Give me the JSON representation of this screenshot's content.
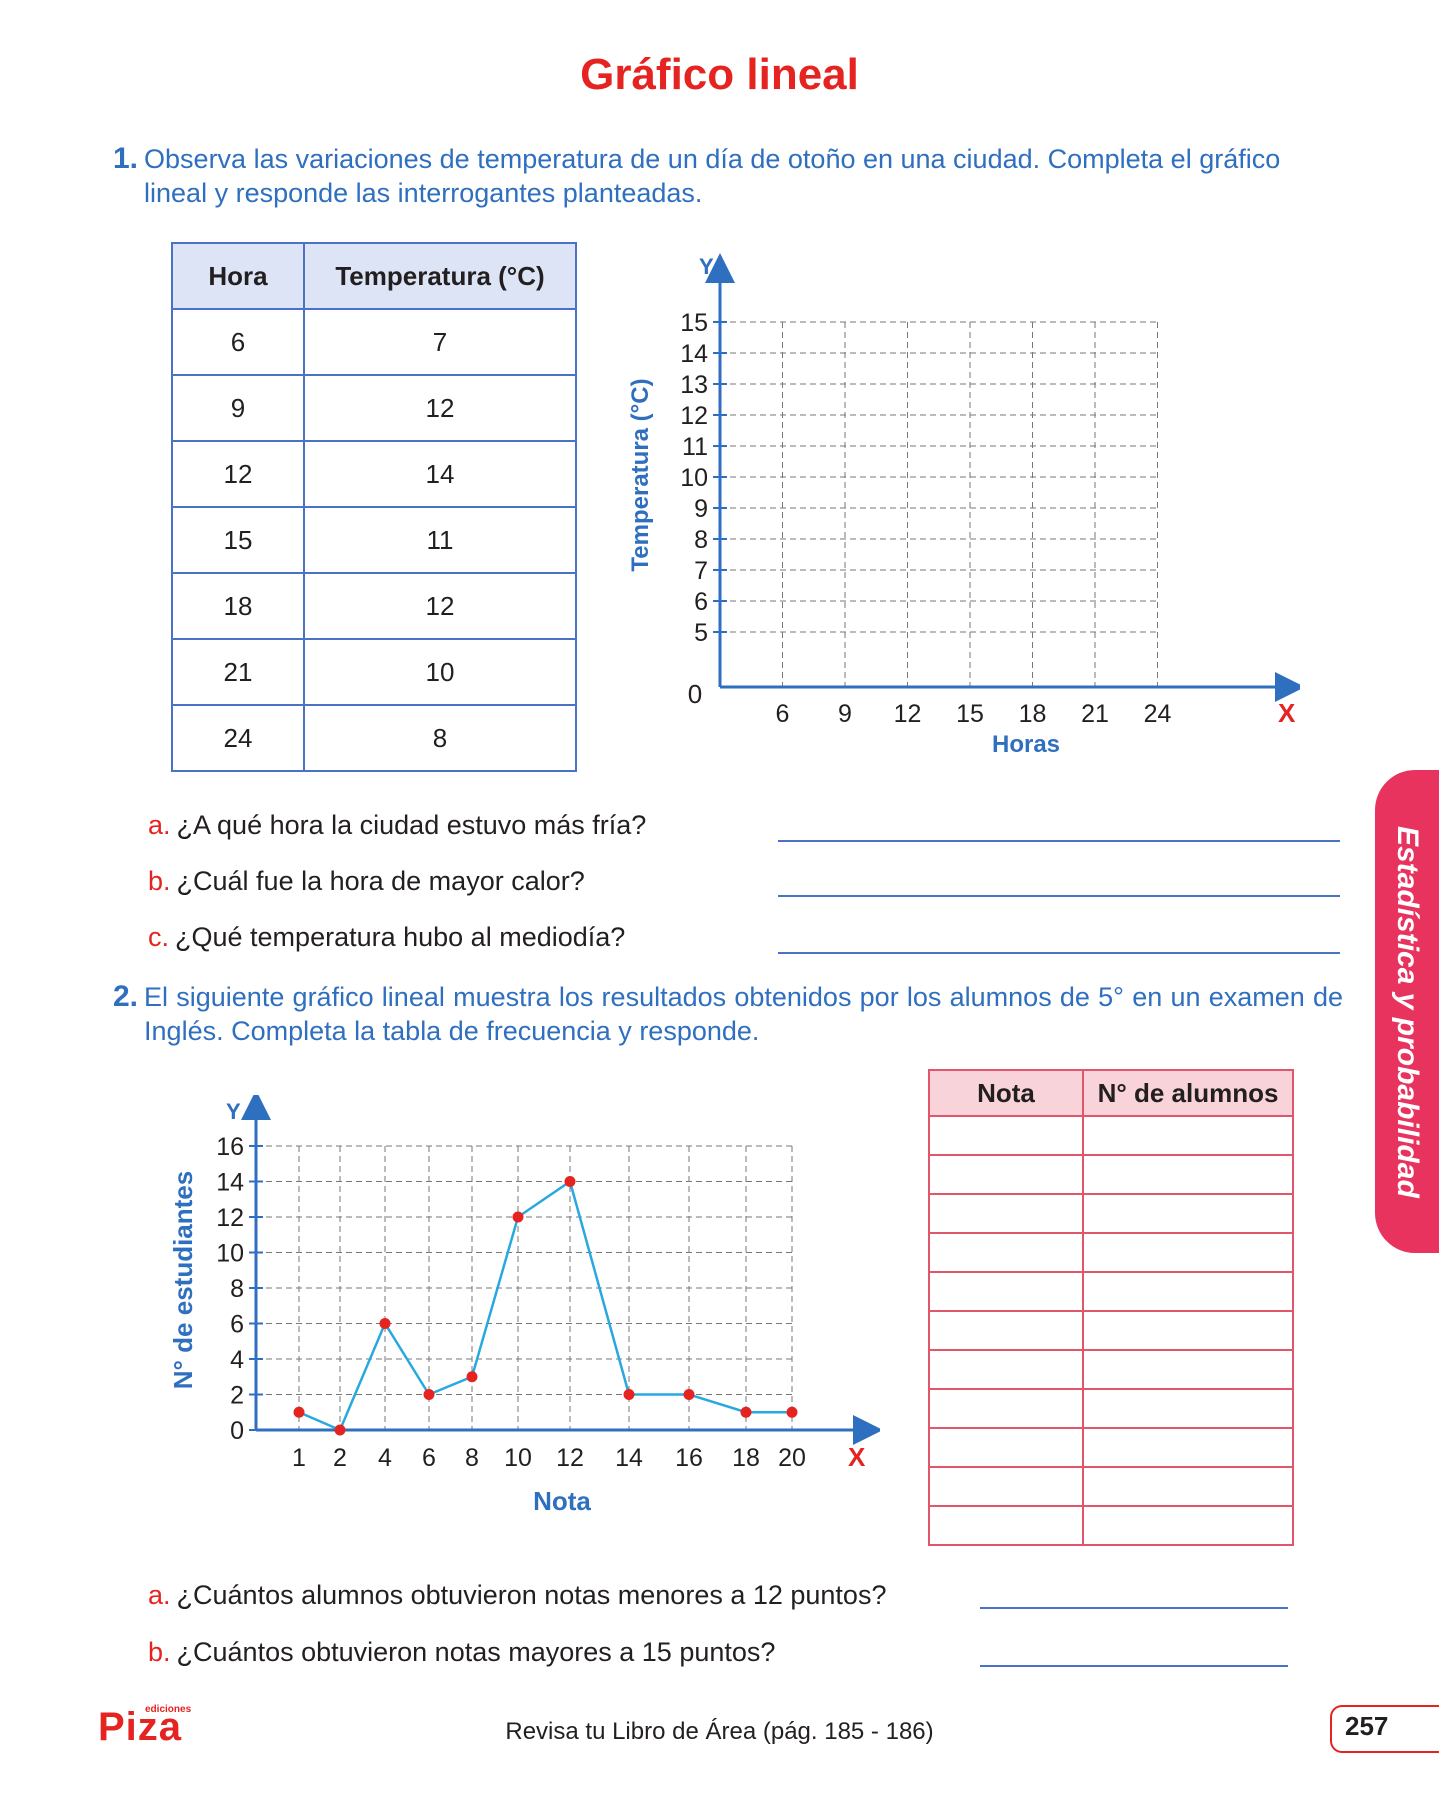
{
  "title": "Gráfico lineal",
  "q1": {
    "number": "1.",
    "text": "Observa las variaciones de temperatura de un día de otoño en una ciudad. Completa el gráfico lineal y responde las interrogantes planteadas.",
    "table": {
      "headers": [
        "Hora",
        "Temperatura (°C)"
      ],
      "rows": [
        [
          "6",
          "7"
        ],
        [
          "9",
          "12"
        ],
        [
          "12",
          "14"
        ],
        [
          "15",
          "11"
        ],
        [
          "18",
          "12"
        ],
        [
          "21",
          "10"
        ],
        [
          "24",
          "8"
        ]
      ]
    },
    "questions": [
      {
        "letter": "a.",
        "text": "¿A qué hora la ciudad estuvo más fría?"
      },
      {
        "letter": "b.",
        "text": "¿Cuál fue la hora de mayor calor?"
      },
      {
        "letter": "c.",
        "text": "¿Qué temperatura hubo al mediodía?"
      }
    ]
  },
  "q2": {
    "number": "2.",
    "text": "El siguiente gráfico lineal muestra los resultados obtenidos por los alumnos de 5° en un examen de Inglés. Completa la tabla de frecuencia y responde.",
    "table": {
      "headers": [
        "Nota",
        "N° de alumnos"
      ],
      "empty_rows": 11
    },
    "questions": [
      {
        "letter": "a.",
        "text": "¿Cuántos alumnos obtuvieron notas menores a 12 puntos?"
      },
      {
        "letter": "b.",
        "text": "¿Cuántos obtuvieron notas mayores a 15 puntos?"
      }
    ]
  },
  "chart_data": [
    {
      "type": "line",
      "xlabel": "Horas",
      "ylabel": "Temperatura (°C)",
      "x_axis_letter": "X",
      "y_axis_letter": "Y",
      "origin_label": "0",
      "x_ticks": [
        "6",
        "9",
        "12",
        "15",
        "18",
        "21",
        "24"
      ],
      "y_ticks": [
        "5",
        "6",
        "7",
        "8",
        "9",
        "10",
        "11",
        "12",
        "13",
        "14",
        "15"
      ],
      "series": []
    },
    {
      "type": "line",
      "xlabel": "Nota",
      "ylabel": "N° de estudiantes",
      "x_axis_letter": "X",
      "y_axis_letter": "Y",
      "x_ticks": [
        "1",
        "2",
        "4",
        "6",
        "8",
        "10",
        "12",
        "14",
        "16",
        "18",
        "20"
      ],
      "y_ticks": [
        "0",
        "2",
        "4",
        "6",
        "8",
        "10",
        "12",
        "14",
        "16"
      ],
      "ylim": [
        0,
        16
      ],
      "series": [
        {
          "x": [
            "1",
            "2",
            "4",
            "6",
            "8",
            "10",
            "12",
            "14",
            "16",
            "18",
            "20"
          ],
          "values": [
            1,
            0,
            6,
            2,
            3,
            12,
            14,
            2,
            2,
            1,
            1
          ]
        }
      ],
      "line_color": "#29a8e0",
      "marker_color": "#e52421"
    }
  ],
  "side_tab": "Estadística y probabilidad",
  "footer": {
    "logo": "Piza",
    "logo_sub": "ediciones",
    "text": "Revisa tu Libro de Área (pág. 185 - 186)",
    "page": "257"
  },
  "colors": {
    "title": "#e52421",
    "blue": "#2f6fbf",
    "pink": "#e8335e"
  }
}
